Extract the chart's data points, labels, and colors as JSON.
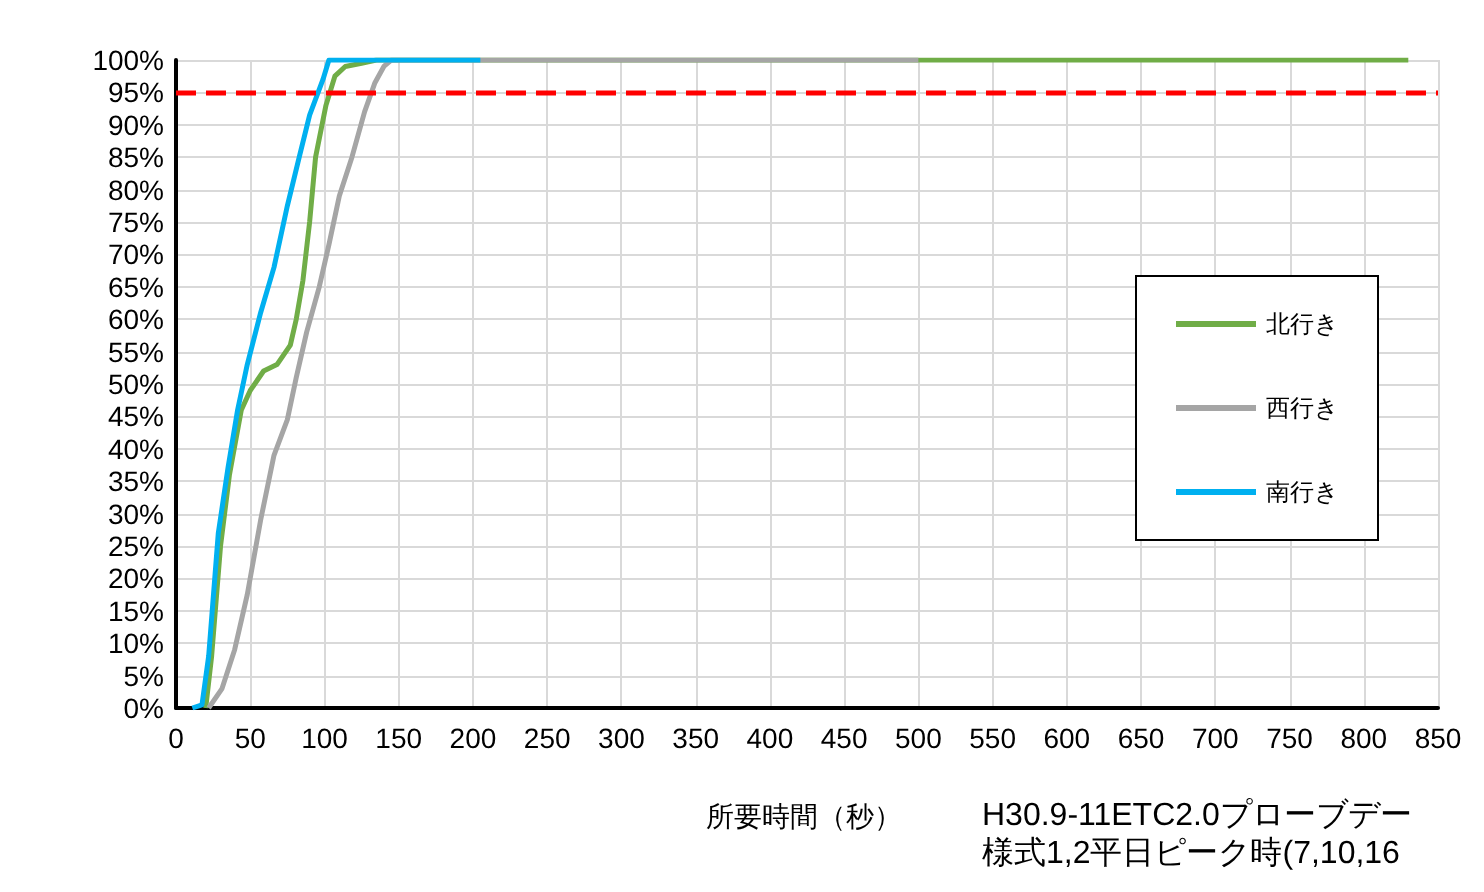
{
  "chart_data": {
    "type": "line",
    "xlabel": "所要時間（秒）",
    "annotations": [
      "H30.9-11ETC2.0プローブデー",
      "様式1,2平日ピーク時(7,10,16"
    ],
    "xlim": [
      0,
      850
    ],
    "xticks": [
      0,
      50,
      100,
      150,
      200,
      250,
      300,
      350,
      400,
      450,
      500,
      550,
      600,
      650,
      700,
      750,
      800,
      850
    ],
    "ylim": [
      0,
      100
    ],
    "yticks": [
      {
        "value": 0,
        "label": "0%"
      },
      {
        "value": 5,
        "label": "5%"
      },
      {
        "value": 10,
        "label": "10%"
      },
      {
        "value": 15,
        "label": "15%"
      },
      {
        "value": 20,
        "label": "20%"
      },
      {
        "value": 25,
        "label": "25%"
      },
      {
        "value": 30,
        "label": "30%"
      },
      {
        "value": 35,
        "label": "35%"
      },
      {
        "value": 40,
        "label": "40%"
      },
      {
        "value": 45,
        "label": "45%"
      },
      {
        "value": 50,
        "label": "50%"
      },
      {
        "value": 55,
        "label": "55%"
      },
      {
        "value": 60,
        "label": "60%"
      },
      {
        "value": 65,
        "label": "65%"
      },
      {
        "value": 70,
        "label": "70%"
      },
      {
        "value": 75,
        "label": "75%"
      },
      {
        "value": 80,
        "label": "80%"
      },
      {
        "value": 85,
        "label": "85%"
      },
      {
        "value": 90,
        "label": "90%"
      },
      {
        "value": 95,
        "label": "95%"
      },
      {
        "value": 100,
        "label": "100%"
      }
    ],
    "grid": true,
    "legend": "right",
    "marker": "none",
    "line_style": "solid",
    "ref_lines": [
      {
        "axis": "y",
        "value": 95,
        "color": "#ff0000",
        "line_style": "dashed"
      }
    ],
    "series": [
      {
        "name": "北行き",
        "color": "#70ad47",
        "x": [
          20,
          24,
          30,
          36,
          44,
          50,
          59,
          68,
          77,
          81,
          85.5,
          90,
          94,
          101,
          107,
          114,
          125,
          135,
          830
        ],
        "values": [
          0,
          8,
          25,
          36,
          46,
          49,
          52,
          53,
          56,
          60,
          66,
          75,
          85,
          93,
          97.5,
          99,
          99.5,
          100,
          100
        ]
      },
      {
        "name": "西行き",
        "color": "#a5a5a5",
        "x": [
          22,
          31,
          39.5,
          48,
          57,
          66,
          75,
          81,
          88,
          96.5,
          103,
          110,
          118.5,
          127,
          134,
          140,
          145,
          500
        ],
        "values": [
          0,
          3,
          9,
          17.5,
          29,
          39,
          44.5,
          51,
          58,
          65,
          71.5,
          79,
          85,
          92,
          96.5,
          99,
          100,
          100
        ]
      },
      {
        "name": "南行き",
        "color": "#00b0f0",
        "x": [
          11,
          17.5,
          22,
          28.5,
          35,
          41.5,
          48,
          57,
          66,
          75,
          83,
          90,
          99,
          103,
          205
        ],
        "values": [
          0,
          0.5,
          8,
          27,
          37,
          46,
          53,
          61,
          68,
          77.5,
          85,
          91.5,
          97,
          100,
          100
        ]
      }
    ]
  }
}
